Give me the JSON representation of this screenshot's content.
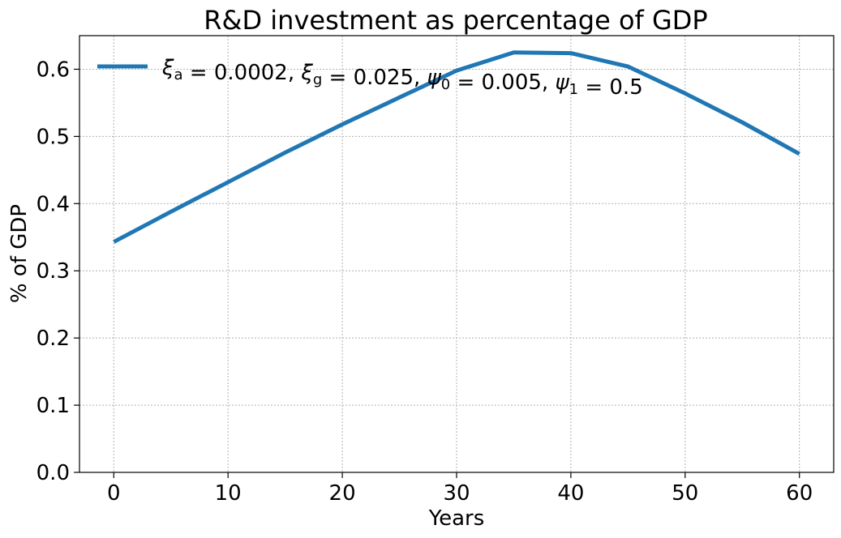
{
  "chart_data": {
    "type": "line",
    "title": "R&D investment as percentage of  GDP",
    "xlabel": "Years",
    "ylabel": "% of GDP",
    "xlim": [
      -3,
      63
    ],
    "ylim": [
      0,
      0.65
    ],
    "xticks": [
      0,
      10,
      20,
      30,
      40,
      50,
      60
    ],
    "yticks": [
      0.0,
      0.1,
      0.2,
      0.3,
      0.4,
      0.5,
      0.6
    ],
    "xtick_labels": [
      "0",
      "10",
      "20",
      "30",
      "40",
      "50",
      "60"
    ],
    "ytick_labels": [
      "0.0",
      "0.1",
      "0.2",
      "0.3",
      "0.4",
      "0.5",
      "0.6"
    ],
    "grid": true,
    "legend_position": "upper-left",
    "series": [
      {
        "name": "ξa = 0.0002, ξg = 0.025, ψ0 = 0.005, ψ1 = 0.5",
        "color": "#1f77b4",
        "x": [
          0,
          5,
          10,
          15,
          20,
          25,
          30,
          35,
          40,
          45,
          50,
          55,
          60
        ],
        "y": [
          0.343,
          0.388,
          0.432,
          0.476,
          0.518,
          0.558,
          0.598,
          0.625,
          0.624,
          0.604,
          0.564,
          0.521,
          0.474
        ]
      }
    ]
  }
}
